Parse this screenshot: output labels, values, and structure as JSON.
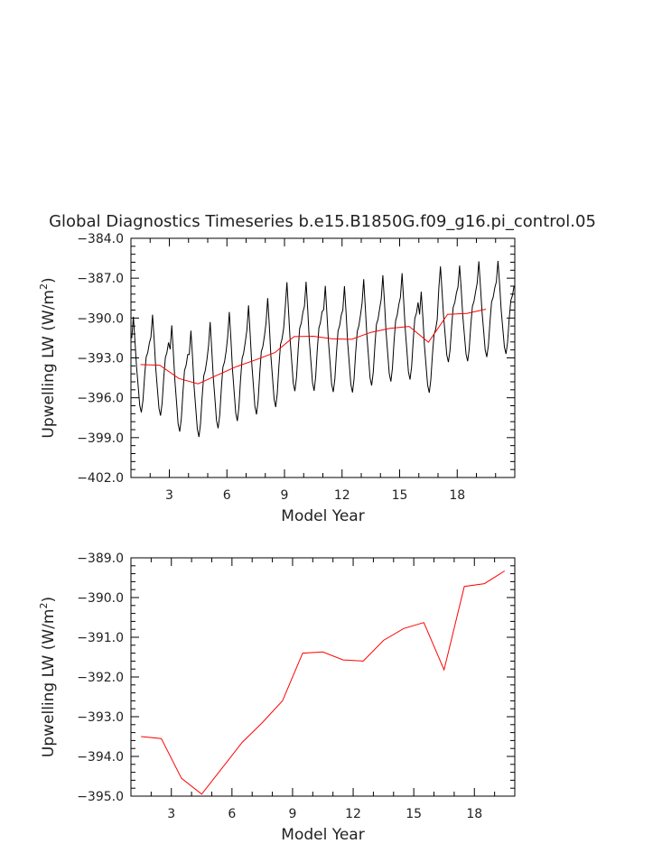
{
  "chart_data": [
    {
      "type": "line",
      "title": "Global Diagnostics Timeseries b.e15.B1850G.f09_g16.pi_control.05",
      "xlabel": "Model Year",
      "ylabel_main": "Upwelling LW (W/m",
      "ylabel_sup": "2",
      "ylabel_close": ")",
      "xlim": [
        1.0,
        21.0
      ],
      "ylim": [
        -402.0,
        -384.0
      ],
      "xticks": [
        3,
        6,
        9,
        12,
        15,
        18
      ],
      "yticks": [
        -384.0,
        -387.0,
        -390.0,
        -393.0,
        -396.0,
        -399.0,
        -402.0
      ],
      "ytick_labels": [
        "−384.0",
        "−387.0",
        "−390.0",
        "−393.0",
        "−396.0",
        "−399.0",
        "−402.0"
      ],
      "series": [
        {
          "color": "#000000",
          "style": "monthly",
          "annual_means": [
            -393.5,
            -393.55,
            -394.55,
            -394.95,
            -394.3,
            -393.65,
            -393.15,
            -392.6,
            -391.4,
            -391.37,
            -391.57,
            -391.6,
            -391.08,
            -390.78,
            -390.63,
            -391.82,
            -389.72,
            -389.65,
            -389.33,
            -389.2
          ],
          "amplitude": [
            3.6,
            3.8,
            4.0,
            4.0,
            4.0,
            4.1,
            4.1,
            4.1,
            4.1,
            4.1,
            4.0,
            4.0,
            4.0,
            4.0,
            4.0,
            3.8,
            3.6,
            3.6,
            3.6,
            3.5
          ]
        },
        {
          "color": "#ff0000",
          "x": [
            1.5,
            2.5,
            3.5,
            4.5,
            5.5,
            6.5,
            7.5,
            8.5,
            9.5,
            10.5,
            11.5,
            12.5,
            13.5,
            14.5,
            15.5,
            16.5,
            17.5,
            18.5,
            19.5
          ],
          "values": [
            -393.5,
            -393.55,
            -394.55,
            -394.95,
            -394.3,
            -393.65,
            -393.15,
            -392.6,
            -391.4,
            -391.37,
            -391.57,
            -391.6,
            -391.08,
            -390.78,
            -390.63,
            -391.82,
            -389.72,
            -389.65,
            -389.33
          ]
        }
      ]
    },
    {
      "type": "line",
      "xlabel": "Model Year",
      "ylabel_main": "Upwelling LW (W/m",
      "ylabel_sup": "2",
      "ylabel_close": ")",
      "xlim": [
        1.0,
        20.0
      ],
      "ylim": [
        -395.0,
        -389.0
      ],
      "xticks": [
        3,
        6,
        9,
        12,
        15,
        18
      ],
      "yticks": [
        -389.0,
        -390.0,
        -391.0,
        -392.0,
        -393.0,
        -394.0,
        -395.0
      ],
      "ytick_labels": [
        "−389.0",
        "−390.0",
        "−391.0",
        "−392.0",
        "−393.0",
        "−394.0",
        "−395.0"
      ],
      "series": [
        {
          "color": "#ff0000",
          "x": [
            1.5,
            2.5,
            3.5,
            4.5,
            5.5,
            6.5,
            7.5,
            8.5,
            9.5,
            10.5,
            11.5,
            12.5,
            13.5,
            14.5,
            15.5,
            16.5,
            17.5,
            18.5,
            19.5
          ],
          "values": [
            -393.5,
            -393.55,
            -394.55,
            -394.95,
            -394.3,
            -393.65,
            -393.15,
            -392.6,
            -391.4,
            -391.37,
            -391.57,
            -391.6,
            -391.08,
            -390.78,
            -390.63,
            -391.82,
            -389.72,
            -389.65,
            -389.33
          ]
        }
      ]
    }
  ]
}
